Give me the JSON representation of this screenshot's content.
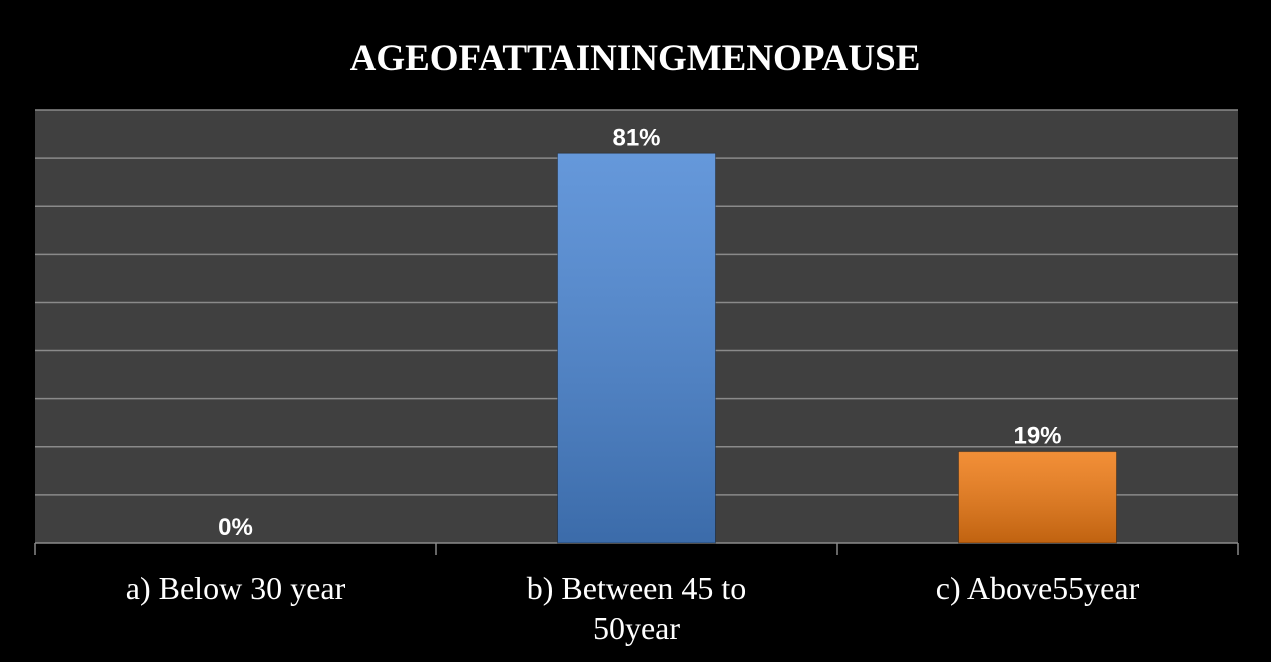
{
  "chart_data": {
    "type": "bar",
    "title": "AGEOFATTAININGMENOPAUSE",
    "categories": [
      "a) Below 30 year",
      "b) Between 45 to 50year",
      "c) Above55year"
    ],
    "values": [
      0,
      81,
      19
    ],
    "value_labels": [
      "0%",
      "81%",
      "19%"
    ],
    "colors": [
      "#4a86d4",
      "#4a86d4",
      "#f07b14"
    ],
    "ylim": [
      0,
      90
    ],
    "yticks": [
      0,
      10,
      20,
      30,
      40,
      50,
      60,
      70,
      80,
      90
    ],
    "grid": true
  }
}
